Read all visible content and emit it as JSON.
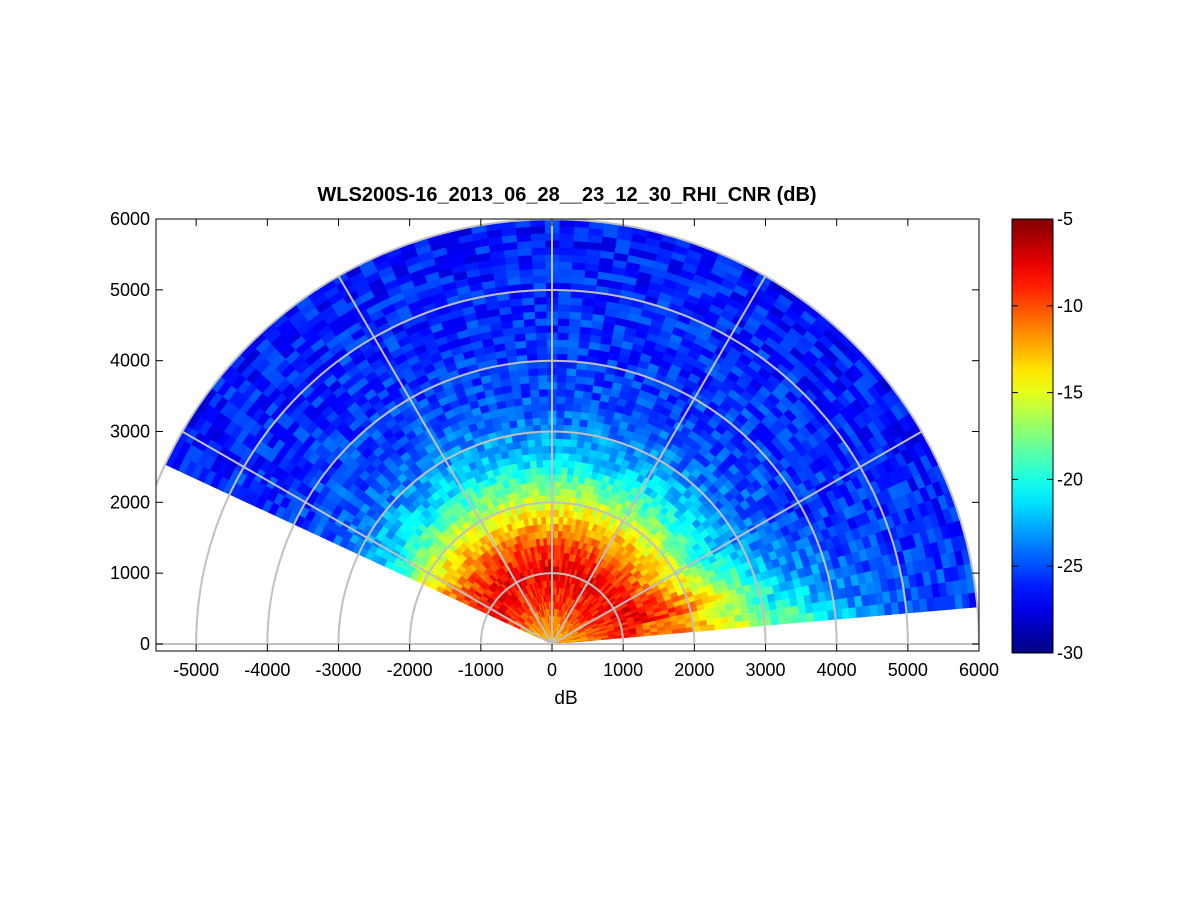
{
  "chart_data": {
    "type": "heatmap",
    "subtype": "polar-rhi-scan",
    "title": "WLS200S-16_2013_06_28__23_12_30_RHI_CNR (dB)",
    "xlabel": "dB",
    "ylabel": "",
    "xlim": [
      -5600,
      6000
    ],
    "ylim": [
      -100,
      6000
    ],
    "x_ticks": [
      -5000,
      -4000,
      -3000,
      -2000,
      -1000,
      0,
      1000,
      2000,
      3000,
      4000,
      5000,
      6000
    ],
    "x_tick_labels": [
      "-5000",
      "-4000",
      "-3000",
      "-2000",
      "-1000",
      "0",
      "1000",
      "2000",
      "3000",
      "4000",
      "5000",
      "6000"
    ],
    "y_ticks": [
      0,
      1000,
      2000,
      3000,
      4000,
      5000,
      6000
    ],
    "y_tick_labels": [
      "0",
      "1000",
      "2000",
      "3000",
      "4000",
      "5000",
      "6000"
    ],
    "polar_grid": {
      "range_rings": [
        1000,
        2000,
        3000,
        4000,
        5000,
        6000
      ],
      "spoke_angles_deg": [
        0,
        30,
        60,
        90,
        120,
        150,
        180
      ]
    },
    "scan": {
      "min_elevation_deg": 5,
      "max_elevation_deg": 155,
      "max_range": 6000,
      "range_gate": 100,
      "ray_step_deg": 2
    },
    "colorbar": {
      "colormap": "jet",
      "range": [
        -30,
        -5
      ],
      "ticks": [
        -5,
        -10,
        -15,
        -20,
        -25,
        -30
      ],
      "tick_labels": [
        "-5",
        "-10",
        "-15",
        "-20",
        "-25",
        "-30"
      ]
    },
    "cnr_profile": {
      "description": "CNR (dB) versus range along rays; strongest near 1000 m",
      "ranges": [
        0,
        300,
        600,
        900,
        1100,
        1400,
        1800,
        2200,
        2600,
        3000,
        3500,
        4000,
        5000,
        6000
      ],
      "values": [
        -13,
        -11.5,
        -9.5,
        -8,
        -8,
        -10,
        -13.5,
        -17.5,
        -21.5,
        -23.5,
        -25,
        -25.5,
        -26,
        -26.5
      ]
    },
    "grid": true,
    "legend": "none"
  }
}
